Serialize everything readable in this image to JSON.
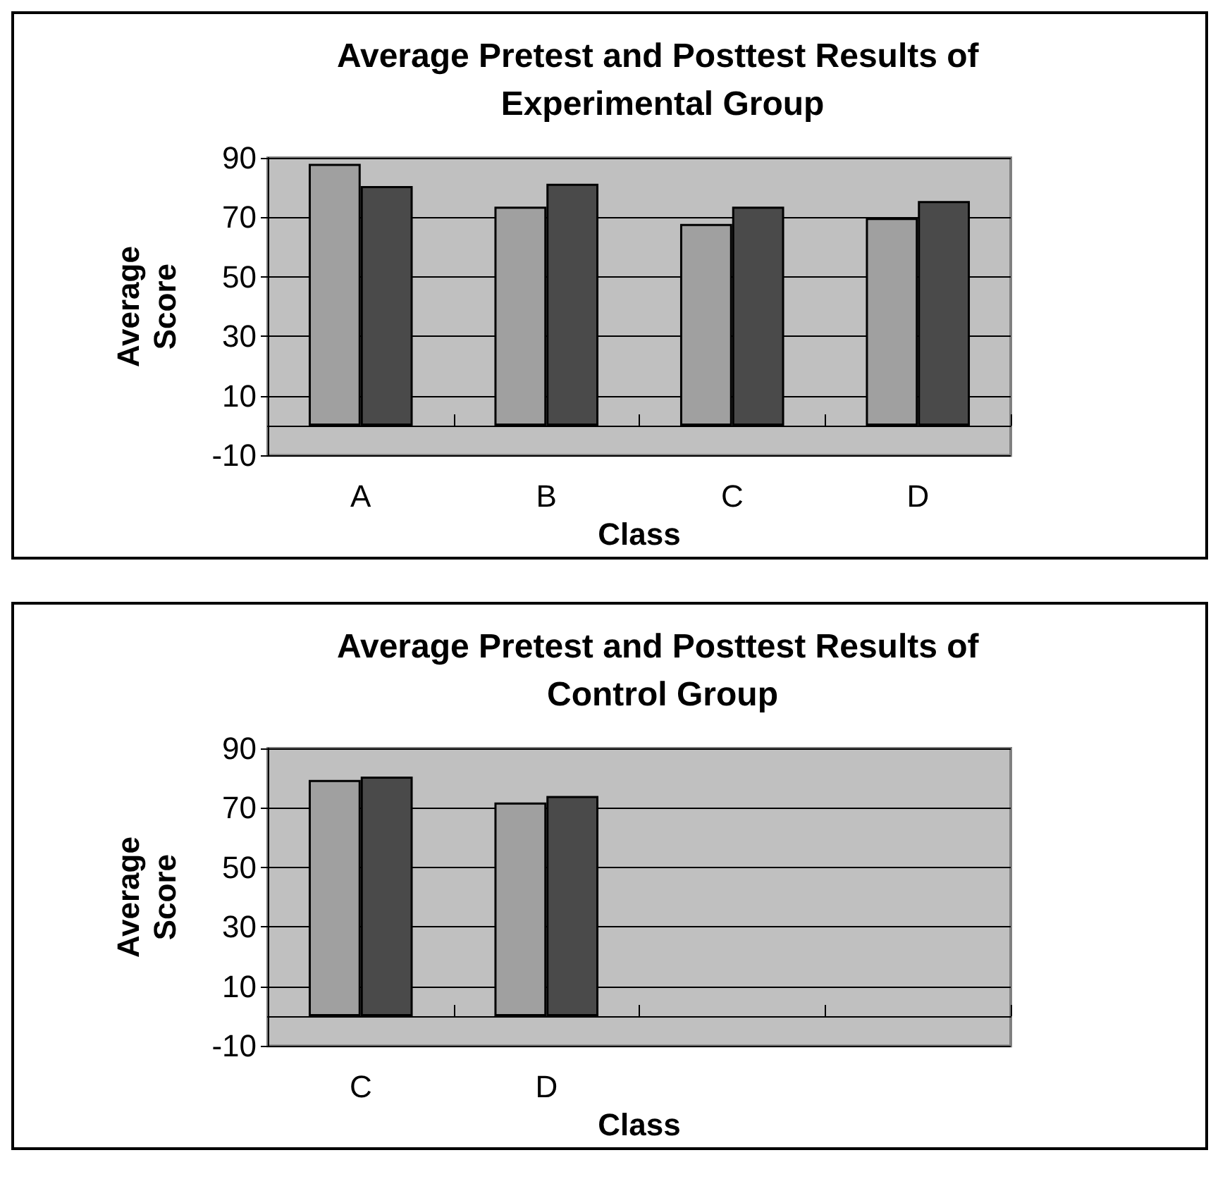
{
  "chart_data": [
    {
      "type": "bar",
      "title": "Average Pretest and Posttest Results of Experimental Group",
      "xlabel": "Class",
      "ylabel": "Average Score",
      "categories": [
        "A",
        "B",
        "C",
        "D"
      ],
      "series": [
        {
          "color": "#a0a0a0",
          "values": [
            88,
            73.6,
            67.8,
            69.8
          ]
        },
        {
          "color": "#4a4a4a",
          "values": [
            80.5,
            81.3,
            73.6,
            75.5
          ]
        }
      ],
      "ylim": [
        -10,
        90
      ],
      "yticks": [
        -10,
        10,
        30,
        50,
        70,
        90
      ],
      "grid": "y"
    },
    {
      "type": "bar",
      "title": "Average Pretest and Posttest Results of Control Group",
      "xlabel": "Class",
      "ylabel": "Average Score",
      "categories": [
        "C",
        "D",
        null,
        null
      ],
      "series": [
        {
          "color": "#a0a0a0",
          "values": [
            79.4,
            71.8,
            null,
            null
          ]
        },
        {
          "color": "#4a4a4a",
          "values": [
            80.5,
            74,
            null,
            null
          ]
        }
      ],
      "ylim": [
        -10,
        90
      ],
      "yticks": [
        -10,
        10,
        30,
        50,
        70,
        90
      ],
      "grid": "y"
    }
  ]
}
